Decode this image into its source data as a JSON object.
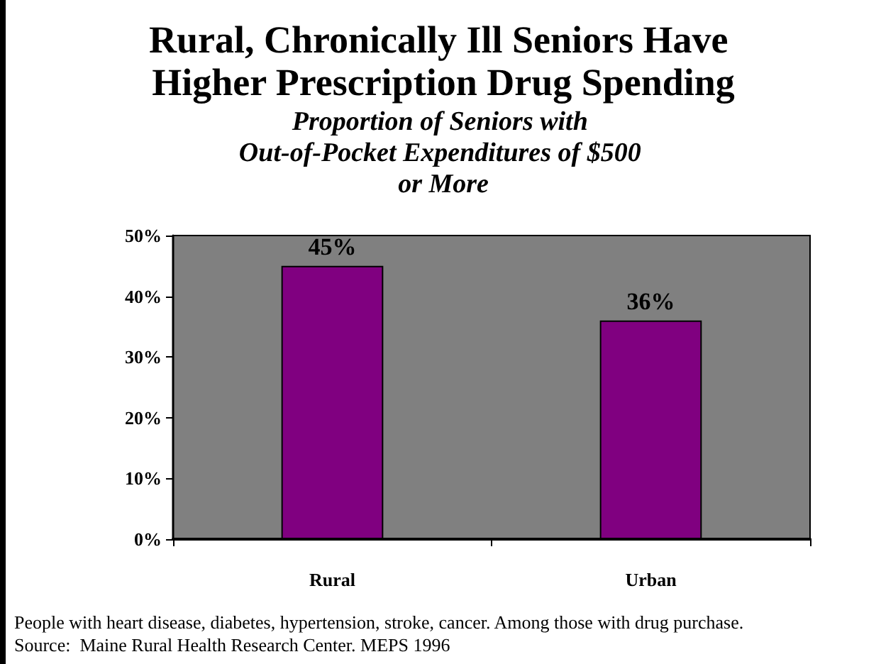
{
  "chart_data": {
    "type": "bar",
    "title": "Rural, Chronically Ill Seniors Have Higher Prescription Drug Spending",
    "subtitle": "Proportion of Seniors with Out-of-Pocket Expenditures of $500 or More",
    "categories": [
      "Rural",
      "Urban"
    ],
    "values": [
      45,
      36
    ],
    "value_labels": [
      "45%",
      "36%"
    ],
    "color": "#800080",
    "ylim": [
      0,
      50
    ],
    "yticks": [
      {
        "value": 0,
        "label": "0%"
      },
      {
        "value": 10,
        "label": "10%"
      },
      {
        "value": 20,
        "label": "20%"
      },
      {
        "value": 30,
        "label": "30%"
      },
      {
        "value": 40,
        "label": "40%"
      },
      {
        "value": 50,
        "label": "50%"
      }
    ],
    "grid": false,
    "legend": false,
    "annotations": [
      "People with heart disease, diabetes, hypertension, stroke, cancer. Among those with drug purchase.",
      "Source:  Maine Rural Health Research Center. MEPS 1996"
    ]
  }
}
